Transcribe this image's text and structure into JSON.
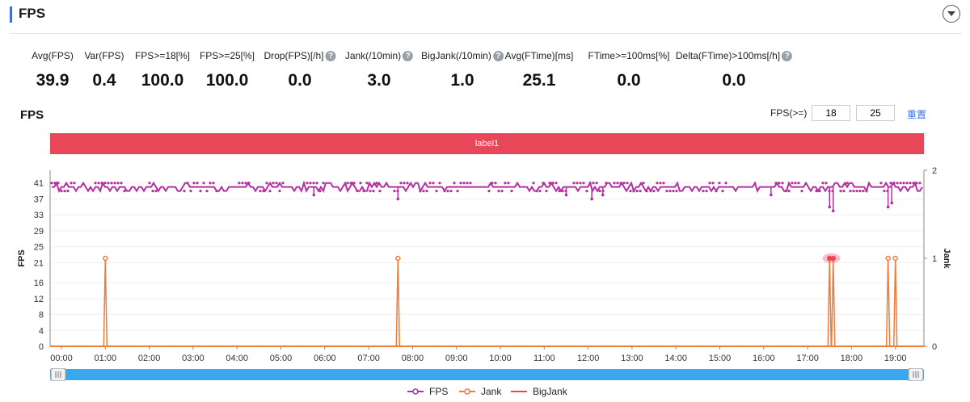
{
  "header": {
    "title": "FPS"
  },
  "metrics": [
    {
      "label": "Avg(FPS)",
      "value": "39.9",
      "help": false
    },
    {
      "label": "Var(FPS)",
      "value": "0.4",
      "help": false
    },
    {
      "label": "FPS>=18[%]",
      "value": "100.0",
      "help": false
    },
    {
      "label": "FPS>=25[%]",
      "value": "100.0",
      "help": false
    },
    {
      "label": "Drop(FPS)[/h]",
      "value": "0.0",
      "help": true
    },
    {
      "label": "Jank(/10min)",
      "value": "3.0",
      "help": true
    },
    {
      "label": "BigJank(/10min)",
      "value": "1.0",
      "help": true
    },
    {
      "label": "Avg(FTime)[ms]",
      "value": "25.1",
      "help": false
    },
    {
      "label": "FTime>=100ms[%]",
      "value": "0.0",
      "help": false
    },
    {
      "label": "Delta(FTime)>100ms[/h]",
      "value": "0.0",
      "help": true
    }
  ],
  "chart_section": {
    "title": "FPS",
    "filter_label": "FPS(>=)",
    "threshold1": "18",
    "threshold2": "25",
    "reset_label": "重置",
    "band_label": "label1"
  },
  "colors": {
    "fps": "#b5309f",
    "jank": "#f07b3a",
    "bigjank": "#e8475a",
    "band": "#e8475a",
    "scrollbar": "#3aa8ec",
    "accent": "#3b6fe0"
  },
  "chart_data": {
    "type": "line",
    "xlabel": "",
    "ylabel": "FPS",
    "y2label": "Jank",
    "x_ticks": [
      "00:00",
      "01:00",
      "02:00",
      "03:00",
      "04:00",
      "05:00",
      "06:00",
      "07:00",
      "08:00",
      "09:00",
      "10:00",
      "11:00",
      "12:00",
      "13:00",
      "14:00",
      "15:00",
      "16:00",
      "17:00",
      "18:00",
      "19:00"
    ],
    "y_ticks": [
      0,
      4,
      8,
      12,
      16,
      21,
      25,
      29,
      33,
      37,
      41
    ],
    "y2_ticks": [
      0,
      1,
      2
    ],
    "ylim": [
      0,
      45
    ],
    "y2lim": [
      0,
      2
    ],
    "series": [
      {
        "name": "FPS",
        "baseline": 40,
        "typical_range": [
          39,
          41
        ],
        "dips": [
          {
            "x": "07:40",
            "y": 37
          },
          {
            "x": "05:45",
            "y": 38
          },
          {
            "x": "11:30",
            "y": 38
          },
          {
            "x": "12:05",
            "y": 37
          },
          {
            "x": "12:20",
            "y": 38
          },
          {
            "x": "16:10",
            "y": 38
          },
          {
            "x": "17:30",
            "y": 35
          },
          {
            "x": "17:35",
            "y": 34
          },
          {
            "x": "18:50",
            "y": 35
          },
          {
            "x": "18:55",
            "y": 36
          }
        ]
      },
      {
        "name": "Jank",
        "baseline": 0,
        "points": [
          {
            "x": "01:00",
            "y": 1
          },
          {
            "x": "07:40",
            "y": 1
          },
          {
            "x": "17:30",
            "y": 1
          },
          {
            "x": "17:35",
            "y": 1
          },
          {
            "x": "18:50",
            "y": 1
          },
          {
            "x": "19:00",
            "y": 1
          }
        ]
      },
      {
        "name": "BigJank",
        "baseline": 0,
        "points": []
      }
    ],
    "legend": [
      "FPS",
      "Jank",
      "BigJank"
    ],
    "legend_position": "bottom",
    "grid": true
  }
}
